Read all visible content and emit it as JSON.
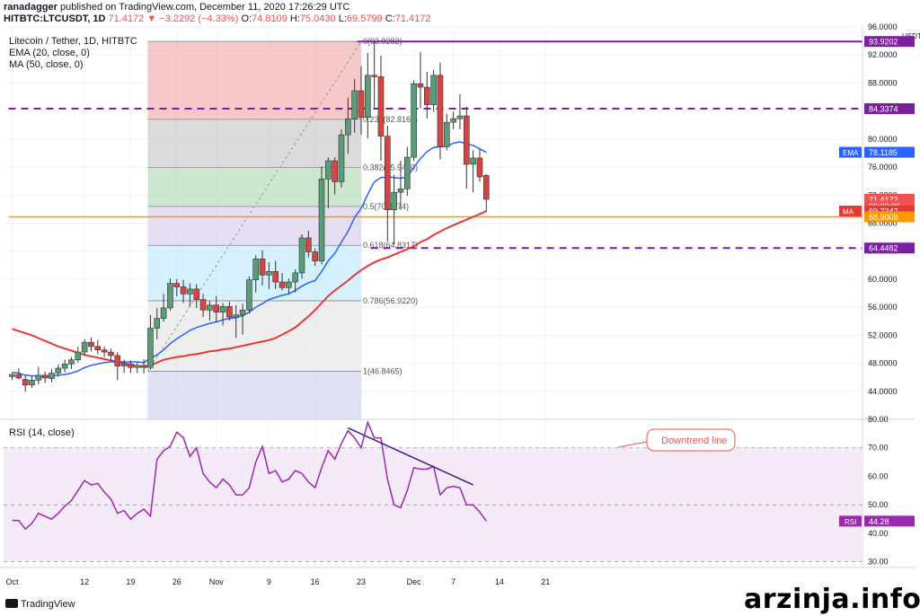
{
  "header": {
    "publisher": "ranadagger",
    "published_text": "published on TradingView.com, December 11, 2020 17:26:29 UTC",
    "symbol_line": "HITBTC:LTCUSDT, 1D",
    "last": "71.4172",
    "change": "▼ −3.2292 (−4.33%)",
    "o_label": "O:",
    "o_value": "74.8109",
    "h_label": "H:",
    "h_value": "75.0430",
    "l_label": "L:",
    "l_value": "69.5799",
    "c_label": "C:",
    "c_value": "71.4172"
  },
  "legend": {
    "title": "Litecoin / Tether, 1D, HITBTC",
    "ema": "EMA (20, close, 0)",
    "ma": "MA (50, close, 0)",
    "rsi": "RSI (14, close)"
  },
  "footer": {
    "brand": "TradingView",
    "watermark": "arzinja.info"
  },
  "colors": {
    "up": "#26a69a",
    "down": "#ef5350",
    "up_fill": "#5b9c78",
    "down_fill": "#d64541",
    "ema": "#2962ff",
    "ma": "#e53935",
    "purple": "#7b1fa2",
    "orange": "#ff9800",
    "rsi": "#9c27b0"
  },
  "chart_data": [
    {
      "type": "candlestick",
      "title": "Litecoin / Tether, 1D, HITBTC",
      "currency": "USDT",
      "ylim": [
        40,
        96
      ],
      "y_ticks": [
        44,
        48,
        52,
        56,
        60,
        64,
        68,
        72,
        76,
        80,
        84,
        88,
        92,
        96
      ],
      "x_ticks": [
        {
          "day": 0,
          "label": "Oct"
        },
        {
          "day": 11,
          "label": "12"
        },
        {
          "day": 18,
          "label": "19"
        },
        {
          "day": 25,
          "label": "26"
        },
        {
          "day": 31,
          "label": "Nov"
        },
        {
          "day": 39,
          "label": "9"
        },
        {
          "day": 46,
          "label": "16"
        },
        {
          "day": 53,
          "label": "23"
        },
        {
          "day": 61,
          "label": "Dec"
        },
        {
          "day": 67,
          "label": "7"
        },
        {
          "day": 74,
          "label": "14"
        },
        {
          "day": 81,
          "label": "21"
        }
      ],
      "ohlc": [
        [
          46.1,
          46.6,
          45.6,
          46.4
        ],
        [
          46.4,
          47.3,
          45.7,
          45.9
        ],
        [
          45.7,
          46.3,
          43.9,
          44.9
        ],
        [
          44.9,
          46.1,
          44.5,
          45.6
        ],
        [
          45.6,
          47.5,
          45.0,
          46.3
        ],
        [
          46.3,
          46.8,
          45.2,
          45.9
        ],
        [
          45.8,
          47.2,
          45.3,
          46.6
        ],
        [
          46.6,
          47.8,
          46.1,
          47.3
        ],
        [
          47.3,
          48.5,
          46.7,
          47.9
        ],
        [
          47.9,
          48.9,
          47.2,
          48.5
        ],
        [
          48.5,
          50.4,
          48.1,
          49.6
        ],
        [
          49.6,
          51.4,
          49.1,
          51.0
        ],
        [
          51.0,
          51.7,
          49.7,
          50.4
        ],
        [
          50.4,
          51.3,
          49.3,
          49.9
        ],
        [
          49.9,
          50.4,
          48.9,
          49.6
        ],
        [
          49.6,
          50.1,
          48.4,
          49.1
        ],
        [
          49.1,
          49.6,
          45.6,
          47.6
        ],
        [
          47.6,
          48.5,
          46.6,
          47.9
        ],
        [
          47.9,
          48.4,
          46.6,
          47.4
        ],
        [
          47.4,
          48.1,
          46.6,
          47.7
        ],
        [
          47.7,
          48.6,
          46.5,
          47.4
        ],
        [
          47.4,
          54.9,
          47.1,
          53.0
        ],
        [
          53.0,
          55.9,
          51.4,
          54.4
        ],
        [
          54.4,
          57.9,
          53.9,
          55.9
        ],
        [
          55.9,
          60.1,
          55.5,
          59.4
        ],
        [
          59.4,
          60.0,
          57.6,
          58.9
        ],
        [
          58.9,
          59.9,
          56.6,
          57.9
        ],
        [
          57.9,
          59.4,
          56.1,
          58.6
        ],
        [
          58.6,
          59.3,
          55.9,
          57.1
        ],
        [
          57.1,
          57.9,
          54.6,
          55.6
        ],
        [
          55.6,
          56.9,
          54.1,
          56.3
        ],
        [
          56.3,
          57.6,
          53.9,
          55.3
        ],
        [
          55.3,
          56.6,
          53.4,
          56.1
        ],
        [
          56.1,
          56.8,
          54.1,
          54.6
        ],
        [
          54.6,
          56.3,
          51.6,
          54.9
        ],
        [
          54.9,
          56.5,
          52.1,
          55.6
        ],
        [
          55.6,
          60.4,
          55.1,
          59.9
        ],
        [
          59.9,
          63.4,
          58.1,
          62.9
        ],
        [
          62.9,
          64.1,
          59.1,
          60.6
        ],
        [
          60.6,
          62.4,
          58.6,
          61.1
        ],
        [
          61.1,
          62.6,
          58.6,
          59.6
        ],
        [
          59.6,
          60.9,
          58.4,
          58.8
        ],
        [
          58.8,
          60.1,
          57.9,
          59.6
        ],
        [
          59.6,
          61.4,
          58.1,
          60.9
        ],
        [
          60.9,
          66.4,
          60.1,
          65.9
        ],
        [
          65.9,
          66.9,
          63.1,
          63.9
        ],
        [
          63.9,
          64.4,
          61.9,
          62.6
        ],
        [
          62.6,
          76.1,
          62.1,
          74.3
        ],
        [
          74.3,
          77.4,
          70.1,
          76.9
        ],
        [
          76.9,
          77.4,
          72.1,
          73.9
        ],
        [
          73.9,
          81.4,
          73.1,
          80.6
        ],
        [
          80.6,
          85.9,
          77.9,
          82.9
        ],
        [
          82.9,
          88.6,
          80.9,
          86.9
        ],
        [
          86.9,
          90.4,
          80.6,
          83.1
        ],
        [
          83.1,
          92.3,
          80.1,
          89.1
        ],
        [
          89.1,
          93.9,
          84.4,
          88.9
        ],
        [
          88.9,
          91.9,
          76.9,
          80.4
        ],
        [
          80.4,
          81.9,
          65.4,
          69.9
        ],
        [
          69.9,
          74.9,
          64.9,
          72.4
        ],
        [
          72.4,
          76.9,
          69.9,
          72.9
        ],
        [
          72.9,
          78.9,
          71.9,
          77.4
        ],
        [
          77.4,
          88.4,
          76.9,
          87.9
        ],
        [
          87.9,
          92.4,
          84.4,
          87.4
        ],
        [
          87.4,
          89.6,
          82.9,
          84.9
        ],
        [
          84.9,
          89.9,
          83.9,
          89.1
        ],
        [
          89.1,
          90.9,
          77.1,
          78.9
        ],
        [
          78.9,
          83.6,
          78.4,
          82.4
        ],
        [
          82.4,
          83.9,
          81.4,
          82.9
        ],
        [
          82.9,
          86.4,
          81.4,
          83.3
        ],
        [
          83.3,
          84.6,
          72.9,
          76.4
        ],
        [
          76.4,
          78.4,
          72.4,
          77.3
        ],
        [
          77.3,
          78.6,
          73.9,
          74.6
        ],
        [
          74.8,
          75.0,
          69.6,
          71.4
        ]
      ],
      "series": [
        {
          "name": "EMA",
          "values": [
            46.7,
            46.6,
            46.3,
            46.2,
            46.2,
            46.1,
            46.2,
            46.3,
            46.4,
            46.6,
            46.9,
            47.4,
            47.7,
            47.9,
            48.1,
            48.2,
            48.2,
            48.2,
            48.2,
            48.2,
            48.1,
            48.7,
            49.2,
            49.9,
            50.8,
            51.5,
            52.1,
            52.7,
            53.1,
            53.4,
            53.7,
            53.9,
            54.2,
            54.4,
            54.5,
            54.8,
            55.3,
            56.0,
            56.5,
            57.1,
            57.4,
            57.7,
            57.9,
            58.4,
            59.0,
            59.5,
            59.8,
            61.1,
            62.6,
            63.7,
            65.3,
            66.8,
            68.8,
            70.1,
            72.1,
            73.9,
            74.5,
            74.6,
            74.5,
            74.4,
            74.6,
            76.0,
            77.2,
            78.2,
            78.8,
            78.9,
            79.0,
            79.4,
            79.6,
            79.3,
            79.1,
            78.6,
            78.1
          ]
        },
        {
          "name": "MA",
          "values": [
            52.9,
            52.6,
            52.3,
            52.0,
            51.6,
            51.2,
            50.8,
            50.4,
            50.1,
            49.8,
            49.5,
            49.2,
            49.0,
            48.8,
            48.6,
            48.4,
            48.2,
            48.0,
            47.8,
            47.6,
            47.5,
            47.7,
            48.1,
            48.5,
            48.7,
            48.9,
            49.0,
            49.2,
            49.3,
            49.5,
            49.7,
            49.8,
            50.0,
            50.1,
            50.3,
            50.5,
            50.7,
            50.9,
            51.1,
            51.3,
            51.6,
            52.1,
            52.6,
            53.1,
            53.9,
            54.7,
            55.6,
            56.6,
            57.6,
            58.4,
            59.1,
            59.8,
            60.6,
            61.3,
            61.9,
            62.4,
            62.8,
            63.1,
            63.5,
            63.9,
            64.3,
            64.7,
            65.3,
            65.7,
            66.3,
            66.8,
            67.3,
            67.7,
            68.1,
            68.5,
            68.9,
            69.3,
            69.7
          ]
        }
      ],
      "price_badges": [
        {
          "value": 93.9202,
          "label": "93.9202",
          "kind": "purple"
        },
        {
          "value": 84.3374,
          "label": "84.3374",
          "kind": "purple"
        },
        {
          "value": 78.1185,
          "label": "78.1185",
          "kind": "ema",
          "tag": "EMA"
        },
        {
          "value": 71.4172,
          "label": "71.4172",
          "kind": "down"
        },
        {
          "value": 70.45,
          "label": "06:33:36",
          "kind": "down"
        },
        {
          "value": 69.7347,
          "label": "69.7347",
          "kind": "ma",
          "tag": "MA"
        },
        {
          "value": 68.9008,
          "label": "68.9008",
          "kind": "orange"
        },
        {
          "value": 64.4482,
          "label": "64.4482",
          "kind": "purple"
        }
      ],
      "horizontal_lines": [
        {
          "value": 93.9202,
          "style": "solid",
          "color": "purple",
          "from_day": 53
        },
        {
          "value": 84.3374,
          "style": "dashed",
          "color": "purple",
          "from_day": 0
        },
        {
          "value": 68.9008,
          "style": "solid",
          "color": "orange",
          "from_day": 0
        },
        {
          "value": 64.4482,
          "style": "dashed",
          "color": "purple",
          "from_day": 55
        }
      ],
      "fibonacci": {
        "from_day": 21,
        "to_day": 53,
        "low": 46.8465,
        "high": 93.9282,
        "levels": [
          {
            "ratio": 0,
            "label": "0(93.9282)",
            "value": 93.9282,
            "color": "#ef9a9a"
          },
          {
            "ratio": 0.236,
            "label": "0.236(82.8169)",
            "value": 82.8169,
            "color": "#bdbdbd"
          },
          {
            "ratio": 0.382,
            "label": "0.382(75.9430)",
            "value": 75.943,
            "color": "#a5d6a7"
          },
          {
            "ratio": 0.5,
            "label": "0.5(70.3874)",
            "value": 70.3874,
            "color": "#d1c4e9"
          },
          {
            "ratio": 0.618,
            "label": "0.618(64.8317)",
            "value": 64.8317,
            "color": "#b3e5fc"
          },
          {
            "ratio": 0.786,
            "label": "0.786(56.9220)",
            "value": 56.922,
            "color": "#e0e0e0"
          },
          {
            "ratio": 1,
            "label": "1(46.8465)",
            "value": 46.8465,
            "color": "#c5cae9"
          }
        ]
      }
    },
    {
      "type": "line",
      "title": "RSI (14, close)",
      "ylim": [
        28,
        80
      ],
      "y_ticks": [
        30,
        40,
        50,
        60,
        70,
        80
      ],
      "band": [
        30,
        70
      ],
      "series": [
        {
          "name": "RSI",
          "values": [
            44.5,
            44.5,
            41.5,
            43.5,
            47,
            46,
            45,
            47,
            49.5,
            51.5,
            55,
            58.5,
            57,
            57.5,
            54.5,
            52,
            47,
            48,
            45,
            47,
            48.5,
            46,
            66,
            69,
            70.5,
            75.5,
            73.5,
            67,
            70,
            61,
            58,
            56,
            59,
            57,
            53.5,
            53.5,
            56,
            65,
            70.5,
            61,
            62,
            58,
            59,
            62,
            61,
            58,
            56,
            63,
            69,
            66,
            71.5,
            76,
            73.5,
            70,
            79,
            73.5,
            73.5,
            59,
            50,
            49,
            55,
            63,
            62.5,
            62.5,
            63.5,
            53.5,
            56,
            56.5,
            56,
            50,
            50,
            47.5,
            44.28
          ]
        }
      ],
      "last_label": "44.28",
      "annotation": "Downtrend line",
      "trendline": {
        "from_day": 51,
        "from_value": 77,
        "to_day": 70,
        "to_value": 57
      }
    }
  ]
}
